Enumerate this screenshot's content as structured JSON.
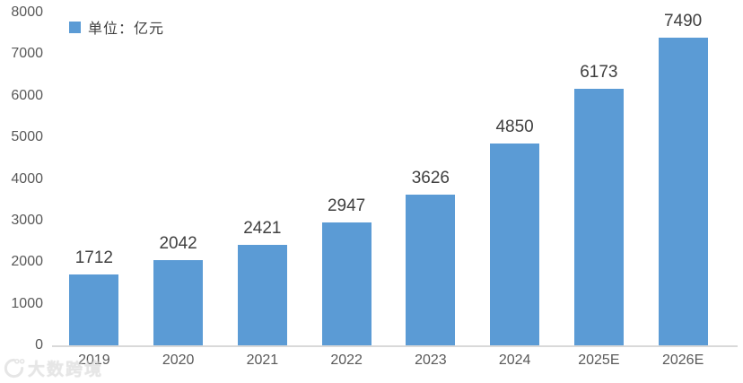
{
  "legend": {
    "label": "单位：亿元",
    "swatch_color": "#5B9BD5"
  },
  "watermark": {
    "text": "大数跨境"
  },
  "colors": {
    "bar": "#5B9BD5",
    "axis_line": "#D9D9D9",
    "tick_text": "#595959",
    "value_text": "#404040"
  },
  "chart_data": {
    "type": "bar",
    "title": "",
    "xlabel": "",
    "ylabel": "",
    "categories": [
      "2019",
      "2020",
      "2021",
      "2022",
      "2023",
      "2024",
      "2025E",
      "2026E"
    ],
    "values": [
      1712,
      2042,
      2421,
      2947,
      3626,
      4850,
      6173,
      7490
    ],
    "series_name": "单位：亿元",
    "ylim": [
      0,
      8000
    ],
    "yticks": [
      0,
      1000,
      2000,
      3000,
      4000,
      5000,
      6000,
      7000,
      8000
    ],
    "bar_color": "#5B9BD5",
    "grid": false,
    "legend_position": "top-left",
    "value_labels_shown": true
  }
}
